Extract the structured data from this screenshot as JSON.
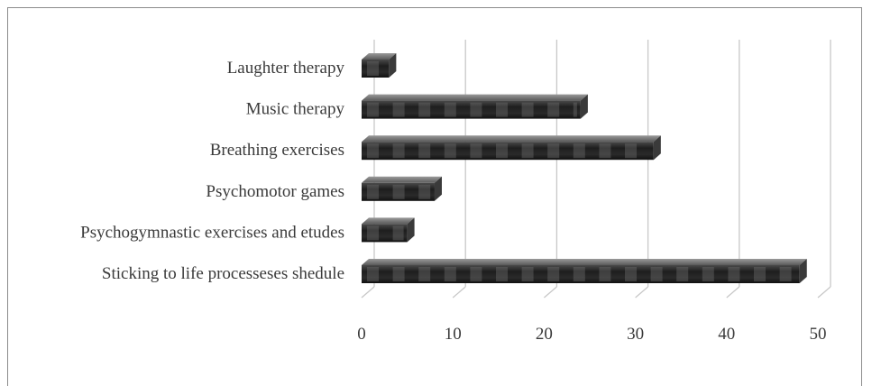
{
  "chart_data": {
    "type": "bar",
    "orientation": "horizontal",
    "categories": [
      "Laughter therapy",
      "Music therapy",
      "Breathing exercises",
      "Psychomotor games",
      "Psychogymnastic exercises and etudes",
      "Sticking to life processeses shedule"
    ],
    "values": [
      3,
      24,
      32,
      8,
      5,
      48
    ],
    "xlim": [
      0,
      50
    ],
    "xticks": [
      "0",
      "10",
      "20",
      "30",
      "40",
      "50"
    ],
    "grid": true,
    "legend": "none",
    "bar_color": "#2b2b2b",
    "highlight_color": "#7a7a7a",
    "gridline_color": "#c8c8c8"
  }
}
